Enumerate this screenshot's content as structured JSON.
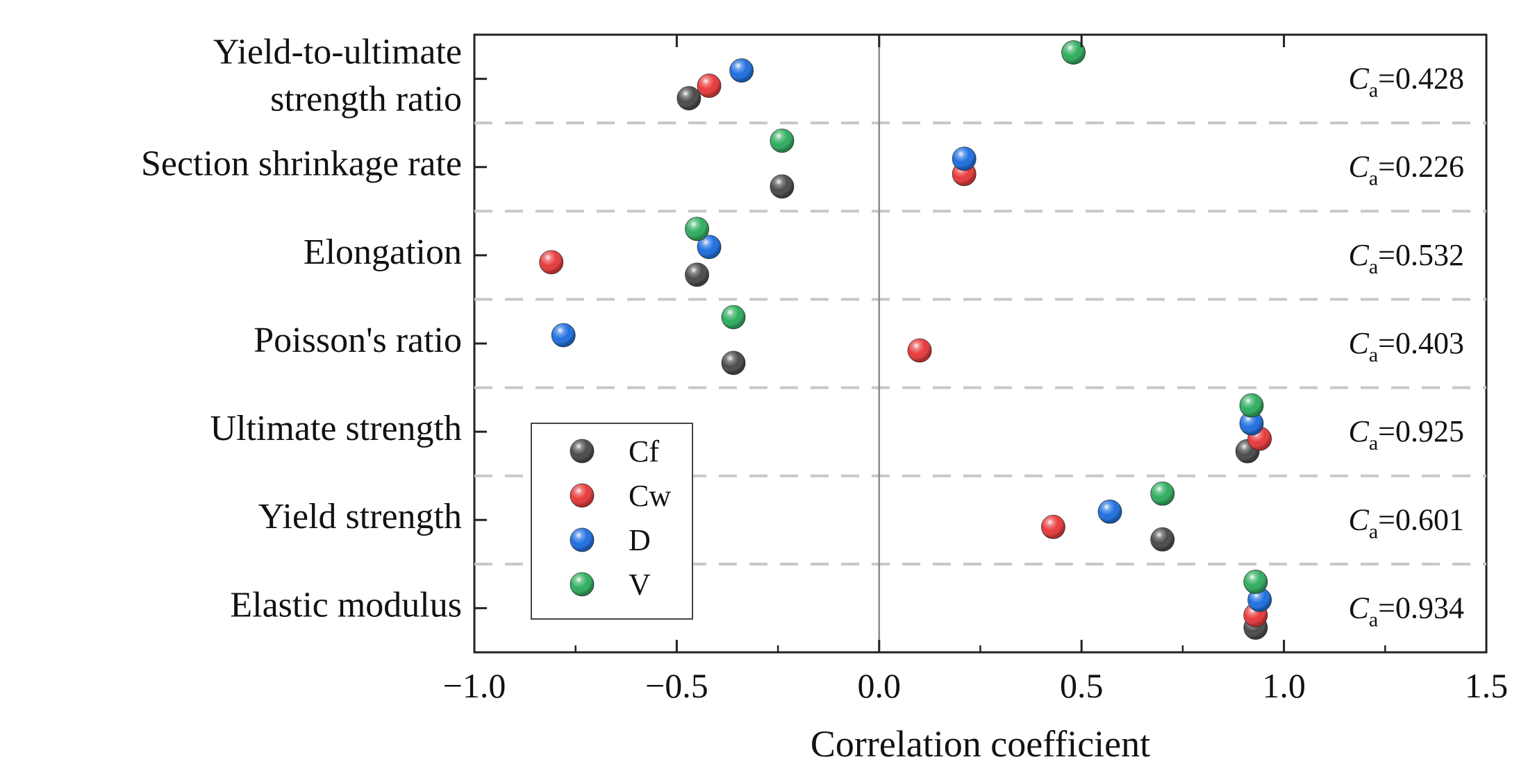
{
  "chart_data": {
    "type": "scatter",
    "xlabel": "Correlation coefficient",
    "xlim": [
      -1.0,
      1.5
    ],
    "xticks": [
      -1.0,
      -0.5,
      0.0,
      0.5,
      1.0,
      1.5
    ],
    "xtick_labels": [
      "−1.0",
      "−0.5",
      "0.0",
      "0.5",
      "1.0",
      "1.5"
    ],
    "categories": [
      [
        "Yield-to-ultimate",
        "strength ratio"
      ],
      [
        "Section shrinkage rate"
      ],
      [
        "Elongation"
      ],
      [
        "Poisson's ratio"
      ],
      [
        "Ultimate strength"
      ],
      [
        "Yield strength"
      ],
      [
        "Elastic modulus"
      ]
    ],
    "series": [
      {
        "name": "Cf",
        "color": "#4a4a4a",
        "values": [
          -0.47,
          -0.24,
          -0.45,
          -0.36,
          0.91,
          0.7,
          0.93
        ]
      },
      {
        "name": "Cw",
        "color": "#e8393b",
        "values": [
          -0.42,
          0.21,
          -0.81,
          0.1,
          0.94,
          0.43,
          0.93
        ]
      },
      {
        "name": "D",
        "color": "#1e6fe0",
        "values": [
          -0.34,
          0.21,
          -0.42,
          -0.78,
          0.92,
          0.57,
          0.94
        ]
      },
      {
        "name": "V",
        "color": "#2fad5e",
        "values": [
          0.48,
          -0.24,
          -0.45,
          -0.36,
          0.92,
          0.7,
          0.93
        ]
      }
    ],
    "ca": {
      "label": "C",
      "subscript": "a",
      "values": [
        "=0.428",
        "=0.226",
        "=0.532",
        "=0.403",
        "=0.925",
        "=0.601",
        "=0.934"
      ]
    },
    "legend_position": "lower-left",
    "grid": false
  }
}
